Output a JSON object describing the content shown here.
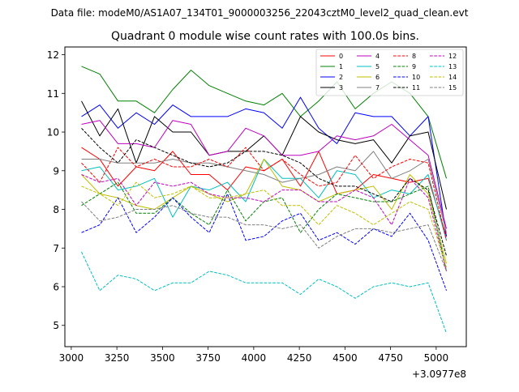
{
  "suptitle": "Data file: modeM0/AS1A07_134T01_9000003256_22043cztM0_level2_quad_clean.evt",
  "chart_data": {
    "type": "line",
    "title": "Quadrant 0 module wise count rates with 100.0s bins.",
    "xlabel": "",
    "ylabel": "",
    "x_offset_label": "+3.0977e8",
    "xlim": [
      2965,
      5165
    ],
    "ylim": [
      4.45,
      12.2
    ],
    "xticks": [
      3000,
      3250,
      3500,
      3750,
      4000,
      4250,
      4500,
      4750,
      5000
    ],
    "xtick_labels": [
      "3000",
      "3250",
      "3500",
      "3750",
      "4000",
      "4250",
      "4500",
      "4750",
      "5000"
    ],
    "yticks": [
      5,
      6,
      7,
      8,
      9,
      10,
      11,
      12
    ],
    "ytick_labels": [
      "5",
      "6",
      "7",
      "8",
      "9",
      "10",
      "11",
      "12"
    ],
    "legend_position": "top-right",
    "x": [
      3056,
      3156,
      3256,
      3356,
      3456,
      3556,
      3656,
      3756,
      3856,
      3956,
      4056,
      4156,
      4256,
      4356,
      4456,
      4556,
      4656,
      4756,
      4856,
      4956,
      5056
    ],
    "series": [
      {
        "name": "0",
        "color": "#ff0000",
        "dash": "solid",
        "values": [
          9.6,
          9.3,
          8.6,
          9.1,
          9.0,
          9.5,
          8.9,
          8.9,
          8.5,
          9.1,
          9.0,
          9.3,
          8.6,
          9.5,
          8.4,
          8.5,
          8.9,
          8.8,
          8.7,
          8.8,
          7.3
        ]
      },
      {
        "name": "1",
        "color": "#008000",
        "dash": "solid",
        "values": [
          11.7,
          11.5,
          10.8,
          10.8,
          10.5,
          11.1,
          11.6,
          11.2,
          11.0,
          10.8,
          10.7,
          11.0,
          10.4,
          10.8,
          11.3,
          10.6,
          11.0,
          11.3,
          11.0,
          10.4,
          8.8
        ]
      },
      {
        "name": "2",
        "color": "#0000ff",
        "dash": "solid",
        "values": [
          10.4,
          10.7,
          10.1,
          10.5,
          10.2,
          10.7,
          10.4,
          10.4,
          10.4,
          10.6,
          10.5,
          10.1,
          10.9,
          10.1,
          9.7,
          10.5,
          10.4,
          10.4,
          9.9,
          10.4,
          7.3
        ]
      },
      {
        "name": "3",
        "color": "#000000",
        "dash": "solid",
        "values": [
          10.8,
          9.9,
          10.6,
          9.2,
          10.4,
          10.0,
          10.0,
          9.4,
          9.5,
          9.5,
          9.9,
          9.4,
          10.4,
          10.0,
          9.8,
          9.7,
          9.8,
          9.2,
          9.9,
          10.0,
          8.0
        ]
      },
      {
        "name": "4",
        "color": "#bf00bf",
        "dash": "solid",
        "values": [
          10.2,
          10.3,
          9.7,
          9.7,
          9.6,
          10.3,
          10.2,
          9.4,
          9.5,
          10.1,
          9.9,
          9.4,
          9.4,
          9.5,
          9.9,
          9.8,
          9.9,
          10.2,
          9.8,
          9.4,
          7.5
        ]
      },
      {
        "name": "5",
        "color": "#00bfbf",
        "dash": "solid",
        "values": [
          9.0,
          9.1,
          8.5,
          8.6,
          8.8,
          7.8,
          8.6,
          8.5,
          8.7,
          8.2,
          9.3,
          8.8,
          8.8,
          8.3,
          9.0,
          8.9,
          8.3,
          8.5,
          8.4,
          8.9,
          7.2
        ]
      },
      {
        "name": "6",
        "color": "#bfbf00",
        "dash": "solid",
        "values": [
          8.9,
          8.4,
          8.3,
          8.1,
          8.0,
          8.3,
          8.6,
          8.4,
          8.2,
          8.4,
          9.3,
          8.6,
          8.5,
          8.2,
          8.4,
          8.5,
          8.6,
          8.0,
          8.9,
          8.4,
          6.6
        ]
      },
      {
        "name": "7",
        "color": "#808080",
        "dash": "solid",
        "values": [
          9.3,
          9.3,
          9.2,
          9.2,
          9.2,
          9.3,
          9.2,
          9.2,
          9.1,
          9.0,
          8.9,
          8.7,
          8.8,
          8.9,
          9.1,
          9.0,
          9.5,
          8.8,
          9.0,
          9.3,
          7.4
        ]
      },
      {
        "name": "8",
        "color": "#ff0000",
        "dash": "dashed",
        "values": [
          9.2,
          8.7,
          9.6,
          9.1,
          9.3,
          9.1,
          9.1,
          9.3,
          9.1,
          9.6,
          9.0,
          9.3,
          8.9,
          8.6,
          8.7,
          9.4,
          8.8,
          9.1,
          9.3,
          9.2,
          7.2
        ]
      },
      {
        "name": "9",
        "color": "#008000",
        "dash": "dashed",
        "values": [
          8.1,
          8.4,
          8.7,
          7.9,
          7.9,
          8.3,
          7.9,
          7.6,
          8.5,
          7.7,
          8.2,
          8.3,
          7.4,
          8.0,
          8.4,
          8.3,
          8.2,
          8.2,
          8.4,
          8.6,
          6.4
        ]
      },
      {
        "name": "10",
        "color": "#0000ff",
        "dash": "dashed",
        "values": [
          7.4,
          7.6,
          8.3,
          7.4,
          7.8,
          8.3,
          7.8,
          7.4,
          8.4,
          7.2,
          7.3,
          7.7,
          7.9,
          7.2,
          7.4,
          7.1,
          7.5,
          7.3,
          7.9,
          7.2,
          5.9
        ]
      },
      {
        "name": "11",
        "color": "#000000",
        "dash": "dashed",
        "values": [
          10.1,
          9.6,
          9.2,
          9.8,
          9.6,
          9.4,
          9.2,
          9.1,
          9.2,
          9.5,
          9.5,
          9.4,
          9.2,
          8.8,
          8.6,
          8.6,
          8.4,
          8.2,
          8.8,
          8.5,
          6.8
        ]
      },
      {
        "name": "12",
        "color": "#bf00bf",
        "dash": "dashed",
        "values": [
          8.9,
          8.7,
          8.8,
          8.1,
          8.7,
          8.6,
          8.7,
          8.4,
          8.3,
          8.3,
          8.2,
          8.5,
          8.5,
          8.2,
          8.2,
          8.5,
          8.3,
          7.6,
          8.8,
          8.3,
          6.4
        ]
      },
      {
        "name": "13",
        "color": "#00bfbf",
        "dash": "dashed",
        "values": [
          6.9,
          5.9,
          6.3,
          6.2,
          5.9,
          6.1,
          6.1,
          6.4,
          6.3,
          6.1,
          6.1,
          6.1,
          5.8,
          6.2,
          6.0,
          5.7,
          6.0,
          6.1,
          6.0,
          6.1,
          4.8
        ]
      },
      {
        "name": "14",
        "color": "#bfbf00",
        "dash": "dashed",
        "values": [
          8.6,
          8.4,
          8.1,
          8.7,
          8.3,
          8.4,
          8.6,
          8.3,
          8.3,
          8.4,
          8.5,
          8.1,
          8.1,
          7.6,
          8.1,
          7.9,
          7.6,
          7.9,
          8.2,
          8.0,
          6.5
        ]
      },
      {
        "name": "15",
        "color": "#808080",
        "dash": "dashed",
        "values": [
          8.2,
          7.7,
          7.8,
          8.0,
          8.0,
          8.1,
          7.9,
          7.8,
          7.8,
          7.6,
          7.6,
          7.5,
          7.6,
          7.0,
          7.3,
          7.5,
          7.5,
          7.4,
          7.5,
          7.6,
          6.4
        ]
      }
    ]
  }
}
